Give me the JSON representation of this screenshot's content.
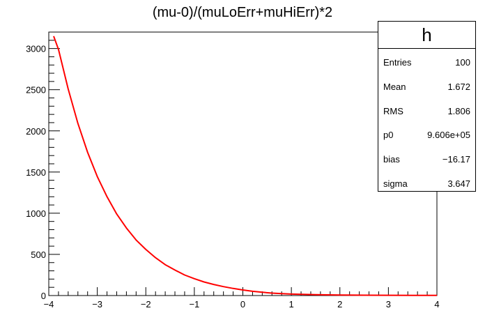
{
  "chart_data": {
    "type": "line",
    "title": "(mu-0)/(muLoErr+muHiErr)*2",
    "xlabel": "",
    "ylabel": "",
    "xlim": [
      -4,
      4
    ],
    "ylim": [
      0,
      3200
    ],
    "x_ticks": [
      -4,
      -3,
      -2,
      -1,
      0,
      1,
      2,
      3,
      4
    ],
    "y_ticks": [
      0,
      500,
      1000,
      1500,
      2000,
      2500,
      3000
    ],
    "grid": false,
    "legend": "none",
    "series": [
      {
        "color": "#ff0000",
        "x": [
          -3.9,
          -3.8,
          -3.6,
          -3.4,
          -3.2,
          -3.0,
          -2.8,
          -2.6,
          -2.4,
          -2.2,
          -2.0,
          -1.8,
          -1.6,
          -1.4,
          -1.2,
          -1.0,
          -0.8,
          -0.6,
          -0.4,
          -0.2,
          0.0,
          0.2,
          0.4,
          0.6,
          0.8,
          1.0,
          1.5,
          2.0,
          2.5,
          3.0,
          3.5,
          4.0
        ],
        "y": [
          3150,
          2990,
          2510,
          2090,
          1740,
          1445,
          1200,
          990,
          820,
          675,
          560,
          460,
          375,
          310,
          250,
          205,
          165,
          135,
          108,
          86,
          68,
          52,
          40,
          30,
          23,
          18,
          10,
          6,
          4,
          3,
          2,
          2
        ]
      }
    ]
  },
  "stats": {
    "name": "h",
    "rows": [
      {
        "key": "Entries",
        "value": "100"
      },
      {
        "key": "Mean",
        "value": "1.672"
      },
      {
        "key": "RMS",
        "value": "1.806"
      },
      {
        "key": "p0",
        "value": "9.606e+05"
      },
      {
        "key": "bias",
        "value": "−16.17"
      },
      {
        "key": "sigma",
        "value": "3.647"
      }
    ]
  }
}
